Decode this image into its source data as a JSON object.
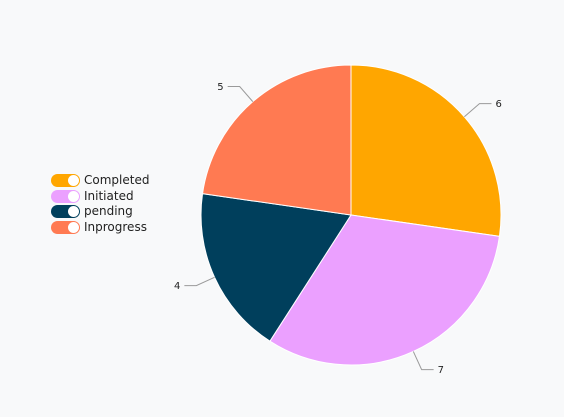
{
  "chart_data": {
    "type": "pie",
    "categories": [
      "Completed",
      "Initiated",
      "pending",
      "Inprogress"
    ],
    "values": [
      6,
      7,
      4,
      5
    ],
    "colors": [
      "#ffa600",
      "#eba0ff",
      "#003f5c",
      "#ff7a52"
    ],
    "legend_placement": "left"
  }
}
